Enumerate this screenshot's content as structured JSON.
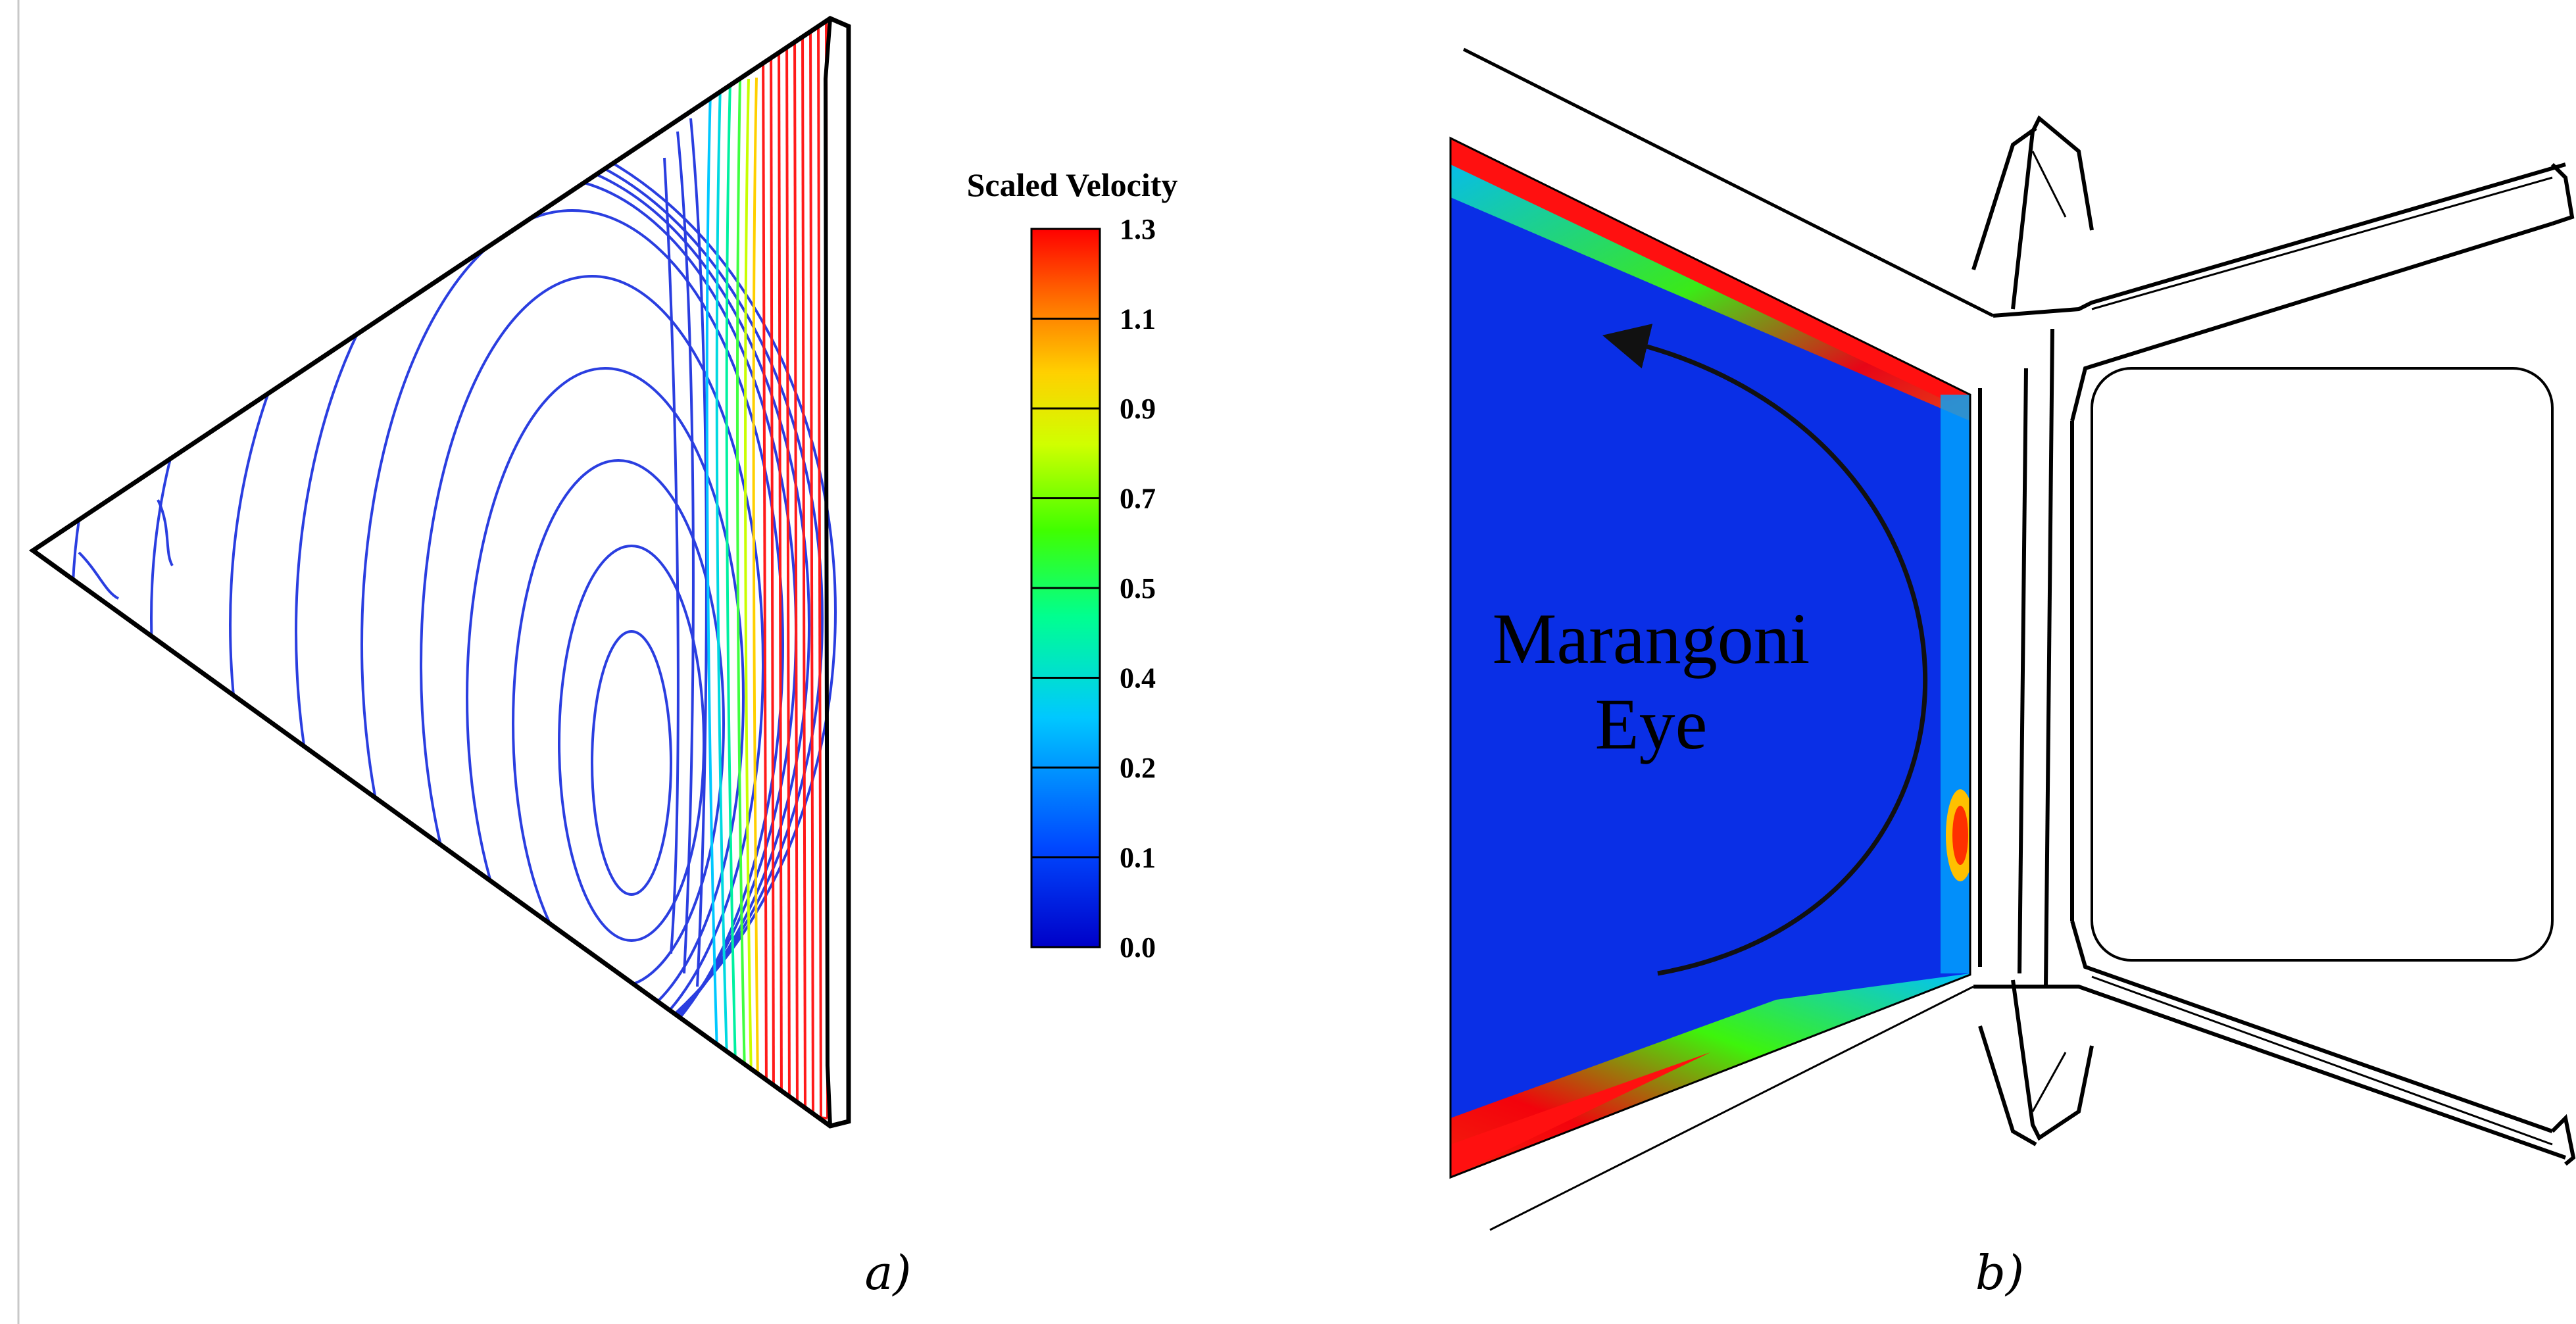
{
  "figure": {
    "panel_a_label": "a)",
    "panel_b_label": "b)"
  },
  "colorbar": {
    "title": "Scaled Velocity",
    "ticks": [
      "1.3",
      "1.1",
      "0.9",
      "0.7",
      "0.5",
      "0.4",
      "0.2",
      "0.1",
      "0.0"
    ],
    "colors": [
      "#0000c8",
      "#0048ff",
      "#00c8ff",
      "#00ff90",
      "#40ff00",
      "#d0ff00",
      "#ffd000",
      "#ff7000",
      "#ff0000"
    ]
  },
  "annotation": {
    "line1": "Marangoni",
    "line2": "Eye"
  }
}
